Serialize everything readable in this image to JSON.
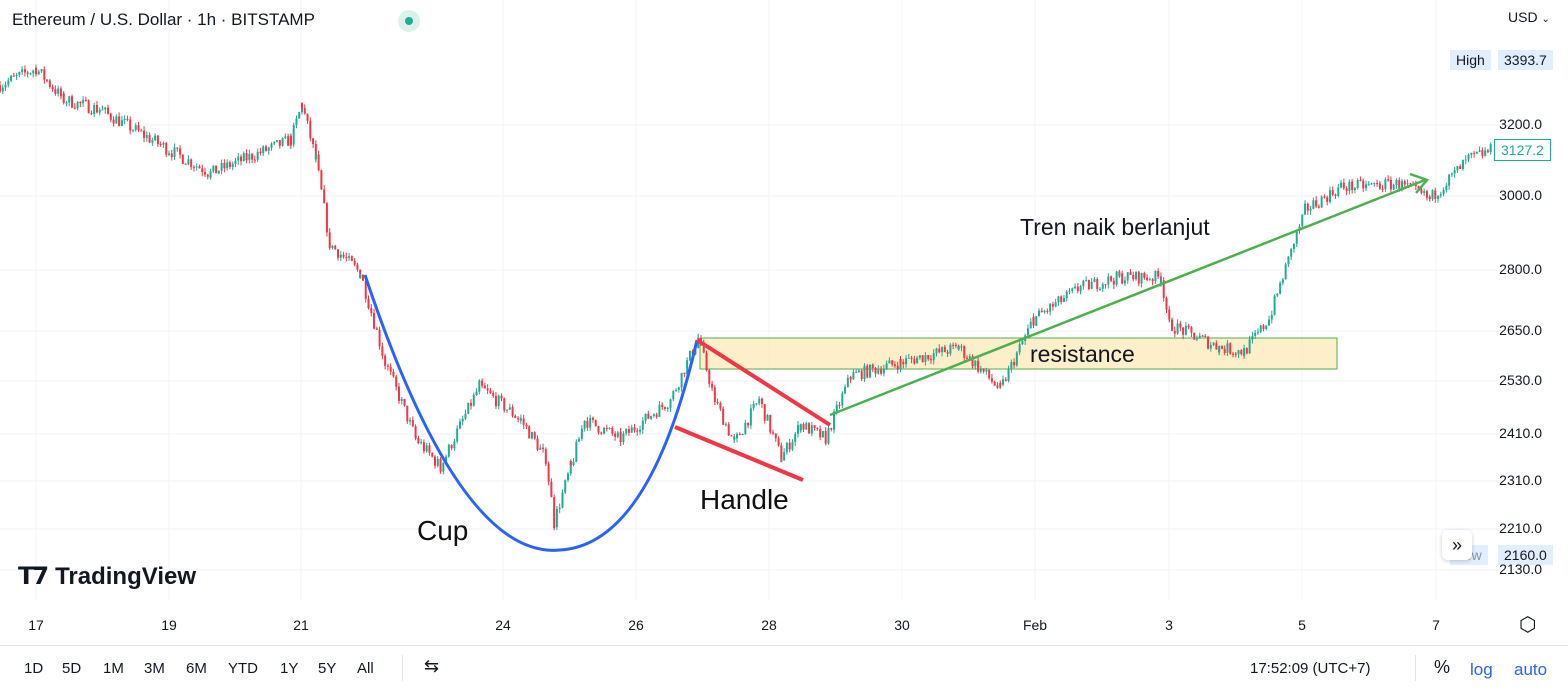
{
  "header": {
    "title": "Ethereum / U.S. Dollar · 1h · BITSTAMP",
    "currency": "USD"
  },
  "price_axis": {
    "high_label": "High",
    "high_value": "3393.7",
    "low_label": "Low",
    "low_value": "2160.0",
    "current_value": "3127.2",
    "current_color": "#22ab94",
    "ticks": [
      "3200.0",
      "3000.0",
      "2800.0",
      "2650.0",
      "2530.0",
      "2410.0",
      "2310.0",
      "2210.0",
      "2130.0"
    ]
  },
  "time_axis": {
    "ticks": [
      "17",
      "19",
      "21",
      "24",
      "26",
      "28",
      "30",
      "Feb",
      "3",
      "5",
      "7"
    ]
  },
  "toolbar": {
    "timeframes": [
      "1D",
      "5D",
      "1M",
      "3M",
      "6M",
      "YTD",
      "1Y",
      "5Y",
      "All"
    ],
    "clock": "17:52:09 (UTC+7)",
    "percent": "%",
    "log": "log",
    "auto": "auto"
  },
  "logo": "TradingView",
  "annotations": {
    "cup": "Cup",
    "handle": "Handle",
    "resistance": "resistance",
    "trend": "Tren naik berlanjut"
  },
  "chart_data": {
    "type": "candlestick",
    "title": "Ethereum / U.S. Dollar · 1h · BITSTAMP",
    "scale": "log",
    "ylim": [
      2100,
      3420
    ],
    "grid": true,
    "up_color": "#22ab94",
    "down_color": "#f23645",
    "x": [
      "Jan 16 11:00",
      "Jan 17 00:00",
      "Jan 17 10:00",
      "Jan 17 23:00",
      "Jan 19 00:00",
      "Jan 19 15:00",
      "Jan 20 20:00",
      "Jan 21 00:00",
      "Jan 21 05:00",
      "Jan 21 10:00",
      "Jan 21 21:00",
      "Jan 22 06:00",
      "Jan 22 17:00",
      "Jan 23 02:00",
      "Jan 23 16:00",
      "Jan 24 07:00",
      "Jan 24 16:00",
      "Jan 24 19:00",
      "Jan 25 01:00",
      "Jan 25 06:00",
      "Jan 25 19:00",
      "Jan 26 13:00",
      "Jan 26 23:00",
      "Jan 27 05:00",
      "Jan 27 12:00",
      "Jan 27 21:00",
      "Jan 28 05:00",
      "Jan 28 12:00",
      "Jan 28 21:00",
      "Jan 29 06:00",
      "Jan 30 00:00",
      "Jan 30 21:00",
      "Jan 31 12:00",
      "Feb 1 00:00",
      "Feb 1 17:00",
      "Feb 2 07:00",
      "Feb 2 22:00",
      "Feb 3 01:00",
      "Feb 3 19:00",
      "Feb 4 04:00",
      "Feb 4 13:00",
      "Feb 4 21:00",
      "Feb 5 02:00",
      "Feb 5 15:00",
      "Feb 6 12:00",
      "Feb 6 23:00",
      "Feb 7 13:00",
      "Feb 7 21:00"
    ],
    "close": [
      3319,
      3370,
      3275,
      3245,
      3128,
      3062,
      3157,
      3260,
      3101,
      2870,
      2795,
      2575,
      2402,
      2340,
      2519,
      2443,
      2360,
      2226,
      2340,
      2443,
      2402,
      2488,
      2633,
      2488,
      2392,
      2488,
      2360,
      2433,
      2402,
      2544,
      2575,
      2611,
      2512,
      2679,
      2758,
      2784,
      2784,
      2666,
      2611,
      2600,
      2679,
      2850,
      2961,
      3023,
      3032,
      2990,
      3101,
      3127
    ]
  }
}
